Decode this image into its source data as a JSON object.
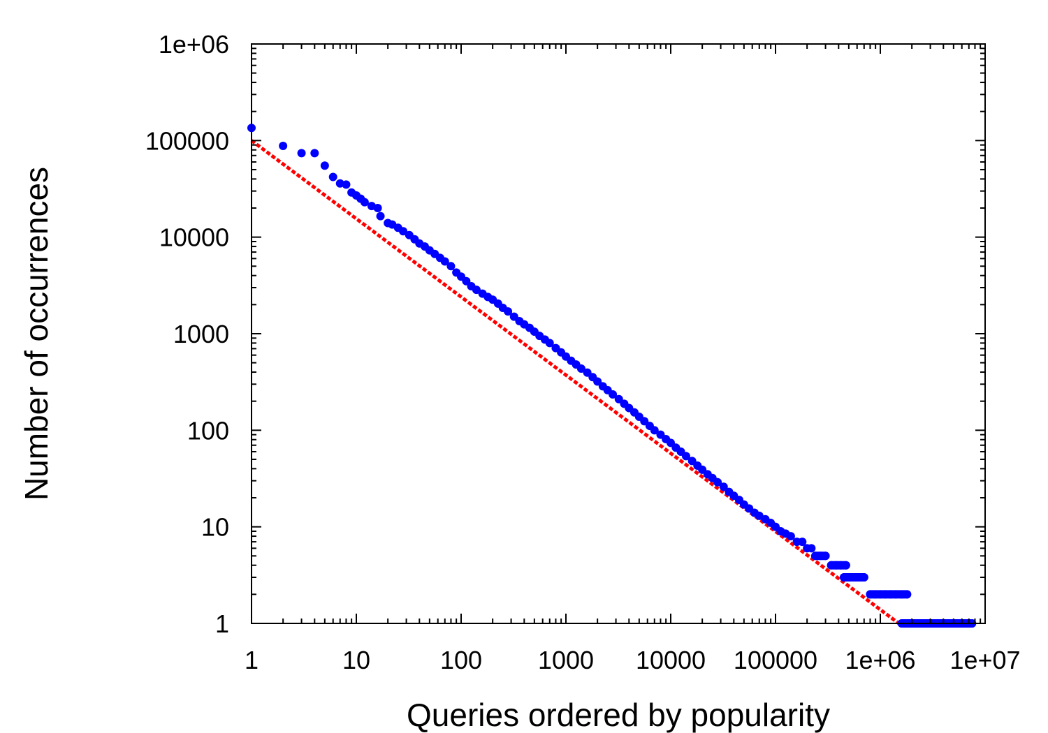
{
  "chart_data": {
    "type": "scatter",
    "title": "",
    "xlabel": "Queries ordered by popularity",
    "ylabel": "Number of occurrences",
    "x_scale": "log",
    "y_scale": "log",
    "xlim": [
      1,
      10000000
    ],
    "ylim": [
      1,
      1000000
    ],
    "x_ticks": [
      {
        "value": 1,
        "label": "1"
      },
      {
        "value": 10,
        "label": "10"
      },
      {
        "value": 100,
        "label": "100"
      },
      {
        "value": 1000,
        "label": "1000"
      },
      {
        "value": 10000,
        "label": "10000"
      },
      {
        "value": 100000,
        "label": "100000"
      },
      {
        "value": 1000000,
        "label": "1e+06"
      },
      {
        "value": 10000000,
        "label": "1e+07"
      }
    ],
    "y_ticks": [
      {
        "value": 1,
        "label": "1"
      },
      {
        "value": 10,
        "label": "10"
      },
      {
        "value": 100,
        "label": "100"
      },
      {
        "value": 1000,
        "label": "1000"
      },
      {
        "value": 10000,
        "label": "10000"
      },
      {
        "value": 100000,
        "label": "100000"
      },
      {
        "value": 1000000,
        "label": "1e+06"
      }
    ],
    "grid": false,
    "series": [
      {
        "kind": "points",
        "color": "#0000ff",
        "points": [
          [
            1,
            135000
          ],
          [
            2,
            88000
          ],
          [
            3,
            74000
          ],
          [
            4,
            74000
          ],
          [
            5,
            55000
          ],
          [
            6,
            42000
          ],
          [
            7,
            36000
          ],
          [
            8,
            35000
          ],
          [
            9,
            29000
          ],
          [
            10,
            27000
          ],
          [
            11,
            25000
          ],
          [
            12,
            23000
          ],
          [
            14,
            21000
          ],
          [
            16,
            20000
          ],
          [
            17,
            16500
          ],
          [
            20,
            14000
          ],
          [
            22,
            13500
          ],
          [
            25,
            12500
          ],
          [
            28,
            11500
          ],
          [
            32,
            10500
          ],
          [
            36,
            9500
          ],
          [
            40,
            8600
          ],
          [
            45,
            8000
          ],
          [
            50,
            7300
          ],
          [
            56,
            6700
          ],
          [
            63,
            6100
          ],
          [
            70,
            5600
          ],
          [
            80,
            5000
          ],
          [
            90,
            4300
          ],
          [
            100,
            3900
          ],
          [
            112,
            3500
          ],
          [
            125,
            3100
          ],
          [
            140,
            2850
          ],
          [
            160,
            2600
          ],
          [
            180,
            2400
          ],
          [
            200,
            2250
          ],
          [
            225,
            2050
          ],
          [
            250,
            1850
          ],
          [
            280,
            1700
          ],
          [
            320,
            1500
          ],
          [
            360,
            1350
          ],
          [
            400,
            1250
          ],
          [
            450,
            1150
          ],
          [
            500,
            1050
          ],
          [
            560,
            950
          ],
          [
            630,
            870
          ],
          [
            700,
            800
          ],
          [
            800,
            710
          ],
          [
            900,
            640
          ],
          [
            1000,
            580
          ],
          [
            1120,
            525
          ],
          [
            1250,
            480
          ],
          [
            1400,
            435
          ],
          [
            1600,
            395
          ],
          [
            1800,
            355
          ],
          [
            2000,
            320
          ],
          [
            2250,
            285
          ],
          [
            2500,
            260
          ],
          [
            2800,
            235
          ],
          [
            3200,
            210
          ],
          [
            3600,
            188
          ],
          [
            4000,
            170
          ],
          [
            4500,
            153
          ],
          [
            5000,
            138
          ],
          [
            5600,
            124
          ],
          [
            6300,
            111
          ],
          [
            7000,
            100
          ],
          [
            8000,
            90
          ],
          [
            9000,
            81
          ],
          [
            10000,
            74
          ],
          [
            11200,
            66
          ],
          [
            12500,
            60
          ],
          [
            14000,
            54
          ],
          [
            16000,
            48
          ],
          [
            18000,
            43
          ],
          [
            20000,
            39
          ],
          [
            22500,
            35
          ],
          [
            25000,
            32
          ],
          [
            28000,
            29
          ],
          [
            32000,
            26
          ],
          [
            36000,
            23
          ],
          [
            40000,
            21
          ],
          [
            45000,
            19
          ],
          [
            50000,
            17
          ],
          [
            56000,
            15.5
          ],
          [
            63000,
            14
          ],
          [
            70000,
            13
          ],
          [
            80000,
            12
          ],
          [
            90000,
            11
          ],
          [
            100000,
            10
          ],
          [
            112000,
            9
          ],
          [
            125000,
            8.5
          ],
          [
            140000,
            8
          ],
          [
            160000,
            7
          ],
          [
            180000,
            7
          ],
          [
            200000,
            6
          ],
          [
            220000,
            6
          ],
          [
            240000,
            5
          ],
          [
            270000,
            5
          ],
          [
            300000,
            5
          ],
          [
            340000,
            4
          ],
          [
            380000,
            4
          ],
          [
            420000,
            4
          ],
          [
            470000,
            4
          ],
          [
            450000,
            3
          ],
          [
            500000,
            3
          ],
          [
            560000,
            3
          ],
          [
            630000,
            3
          ],
          [
            700000,
            3
          ],
          [
            800000,
            2
          ],
          [
            900000,
            2
          ],
          [
            1000000,
            2
          ],
          [
            1120000,
            2
          ],
          [
            1250000,
            2
          ],
          [
            1400000,
            2
          ],
          [
            1600000,
            2
          ],
          [
            1800000,
            2
          ],
          [
            1600000,
            1
          ],
          [
            1800000,
            1
          ],
          [
            2000000,
            1
          ],
          [
            2250000,
            1
          ],
          [
            2500000,
            1
          ],
          [
            2800000,
            1
          ],
          [
            3200000,
            1
          ],
          [
            3600000,
            1
          ],
          [
            4000000,
            1
          ],
          [
            4500000,
            1
          ],
          [
            5000000,
            1
          ],
          [
            5600000,
            1
          ],
          [
            6300000,
            1
          ],
          [
            7000000,
            1
          ],
          [
            7500000,
            1
          ]
        ]
      },
      {
        "kind": "fit-line",
        "style": "dotted",
        "color": "#ff0000",
        "points": [
          [
            1,
            100000
          ],
          [
            1500000,
            1
          ]
        ]
      }
    ]
  }
}
